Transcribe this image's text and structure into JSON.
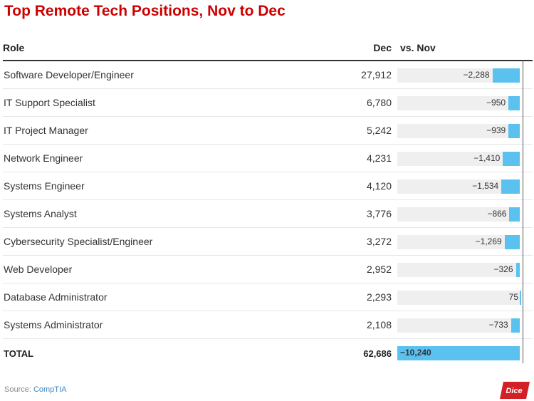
{
  "title": "Top Remote Tech Positions, Nov to Dec",
  "headers": {
    "role": "Role",
    "dec": "Dec",
    "vs": "vs. Nov"
  },
  "rows": [
    {
      "role": "Software Developer/Engineer",
      "dec": "27,912",
      "change_label": "−2,288",
      "change": -2288
    },
    {
      "role": "IT Support Specialist",
      "dec": "6,780",
      "change_label": "−950",
      "change": -950
    },
    {
      "role": "IT Project Manager",
      "dec": "5,242",
      "change_label": "−939",
      "change": -939
    },
    {
      "role": "Network Engineer",
      "dec": "4,231",
      "change_label": "−1,410",
      "change": -1410
    },
    {
      "role": "Systems Engineer",
      "dec": "4,120",
      "change_label": "−1,534",
      "change": -1534
    },
    {
      "role": "Systems Analyst",
      "dec": "3,776",
      "change_label": "−866",
      "change": -866
    },
    {
      "role": "Cybersecurity Specialist/Engineer",
      "dec": "3,272",
      "change_label": "−1,269",
      "change": -1269
    },
    {
      "role": "Web Developer",
      "dec": "2,952",
      "change_label": "−326",
      "change": -326
    },
    {
      "role": "Database Administrator",
      "dec": "2,293",
      "change_label": "75",
      "change": 75
    },
    {
      "role": "Systems Administrator",
      "dec": "2,108",
      "change_label": "−733",
      "change": -733
    }
  ],
  "total": {
    "role": "TOTAL",
    "dec": "62,686",
    "change_label": "−10,240",
    "change": -10240
  },
  "source": {
    "prefix": "Source: ",
    "name": "CompTIA"
  },
  "logo_text": "Dice",
  "colors": {
    "title": "#cc0000",
    "bar": "#5bc2f0",
    "bar_bg": "#efefef",
    "logo": "#d31f26"
  },
  "chart_data": {
    "type": "table",
    "title": "Top Remote Tech Positions, Nov to Dec",
    "columns": [
      "Role",
      "Dec",
      "vs. Nov"
    ],
    "categories": [
      "Software Developer/Engineer",
      "IT Support Specialist",
      "IT Project Manager",
      "Network Engineer",
      "Systems Engineer",
      "Systems Analyst",
      "Cybersecurity Specialist/Engineer",
      "Web Developer",
      "Database Administrator",
      "Systems Administrator",
      "TOTAL"
    ],
    "series": [
      {
        "name": "Dec",
        "values": [
          27912,
          6780,
          5242,
          4231,
          4120,
          3776,
          3272,
          2952,
          2293,
          2108,
          62686
        ]
      },
      {
        "name": "vs. Nov",
        "values": [
          -2288,
          -950,
          -939,
          -1410,
          -1534,
          -866,
          -1269,
          -326,
          75,
          -733,
          -10240
        ]
      }
    ],
    "grid": false
  }
}
